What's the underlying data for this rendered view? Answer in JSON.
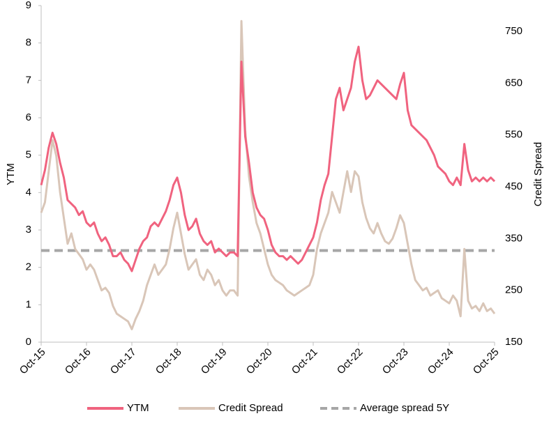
{
  "chart_data": {
    "type": "line",
    "y_label": "YTM",
    "y2_label": "Credit Spread",
    "categories": [
      "Oct-15",
      null,
      null,
      null,
      null,
      null,
      null,
      null,
      null,
      null,
      null,
      null,
      "Oct-16",
      null,
      null,
      null,
      null,
      null,
      null,
      null,
      null,
      null,
      null,
      null,
      "Oct-17",
      null,
      null,
      null,
      null,
      null,
      null,
      null,
      null,
      null,
      null,
      null,
      "Oct-18",
      null,
      null,
      null,
      null,
      null,
      null,
      null,
      null,
      null,
      null,
      null,
      "Oct-19",
      null,
      null,
      null,
      null,
      null,
      null,
      null,
      null,
      null,
      null,
      null,
      "Oct-20",
      null,
      null,
      null,
      null,
      null,
      null,
      null,
      null,
      null,
      null,
      null,
      "Oct-21",
      null,
      null,
      null,
      null,
      null,
      null,
      null,
      null,
      null,
      null,
      null,
      "Oct-22",
      null,
      null,
      null,
      null,
      null,
      null,
      null,
      null,
      null,
      null,
      null,
      "Oct-23",
      null,
      null,
      null,
      null,
      null,
      null,
      null,
      null,
      null,
      null,
      null,
      "Oct-24",
      null,
      null,
      null,
      null,
      null,
      null,
      null,
      null,
      null,
      null,
      null,
      "Oct-25"
    ],
    "series": [
      {
        "name": "YTM",
        "color": "#f0637f",
        "axis": "y",
        "values": [
          4.2,
          4.6,
          5.2,
          5.6,
          5.3,
          4.8,
          4.4,
          3.8,
          3.7,
          3.6,
          3.4,
          3.5,
          3.2,
          3.1,
          3.2,
          2.9,
          2.7,
          2.8,
          2.6,
          2.3,
          2.3,
          2.4,
          2.2,
          2.1,
          1.9,
          2.2,
          2.5,
          2.7,
          2.8,
          3.1,
          3.2,
          3.1,
          3.3,
          3.5,
          3.8,
          4.2,
          4.4,
          4.0,
          3.4,
          3.0,
          3.1,
          3.3,
          2.9,
          2.7,
          2.6,
          2.7,
          2.4,
          2.5,
          2.4,
          2.3,
          2.4,
          2.4,
          2.3,
          7.5,
          5.5,
          4.8,
          4.0,
          3.6,
          3.4,
          3.3,
          3.0,
          2.6,
          2.4,
          2.3,
          2.3,
          2.2,
          2.3,
          2.2,
          2.1,
          2.2,
          2.4,
          2.6,
          2.8,
          3.2,
          3.8,
          4.2,
          4.5,
          5.5,
          6.5,
          6.8,
          6.2,
          6.5,
          6.8,
          7.5,
          7.9,
          7.0,
          6.5,
          6.6,
          6.8,
          7.0,
          6.9,
          6.8,
          6.7,
          6.6,
          6.5,
          6.9,
          7.2,
          6.2,
          5.8,
          5.7,
          5.6,
          5.5,
          5.4,
          5.2,
          5.0,
          4.7,
          4.6,
          4.5,
          4.3,
          4.2,
          4.4,
          4.2,
          5.3,
          4.6,
          4.3,
          4.4,
          4.3,
          4.4,
          4.3,
          4.4,
          4.3
        ]
      },
      {
        "name": "Credit Spread",
        "color": "#d9c6b8",
        "axis": "y2",
        "values": [
          400,
          420,
          480,
          540,
          510,
          440,
          390,
          340,
          360,
          330,
          320,
          310,
          290,
          300,
          290,
          270,
          250,
          255,
          245,
          220,
          205,
          200,
          195,
          190,
          175,
          195,
          210,
          230,
          260,
          280,
          300,
          280,
          290,
          300,
          330,
          370,
          400,
          360,
          320,
          290,
          300,
          310,
          280,
          270,
          290,
          280,
          260,
          270,
          250,
          240,
          250,
          250,
          240,
          770,
          560,
          470,
          420,
          380,
          360,
          330,
          300,
          280,
          270,
          265,
          260,
          250,
          245,
          240,
          245,
          250,
          255,
          260,
          280,
          330,
          360,
          380,
          400,
          440,
          420,
          400,
          440,
          480,
          440,
          480,
          470,
          420,
          390,
          370,
          360,
          380,
          360,
          345,
          340,
          350,
          370,
          395,
          380,
          340,
          300,
          270,
          260,
          250,
          255,
          240,
          245,
          250,
          235,
          230,
          225,
          240,
          230,
          200,
          330,
          230,
          215,
          220,
          210,
          225,
          210,
          215,
          205
        ]
      }
    ],
    "reference_line": {
      "name": "Average spread 5Y",
      "value": 327,
      "axis": "y2",
      "color": "#a6a6a6"
    },
    "ylim": [
      0,
      9
    ],
    "yticks": [
      0,
      1,
      2,
      3,
      4,
      5,
      6,
      7,
      8,
      9
    ],
    "y2lim": [
      150,
      800
    ],
    "y2ticks": [
      150,
      250,
      350,
      450,
      550,
      650,
      750
    ],
    "grid": false,
    "legend": "bottom"
  }
}
